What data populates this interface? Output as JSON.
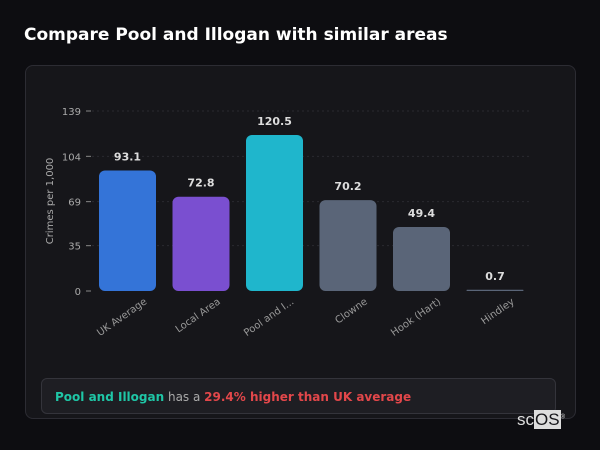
{
  "title": "Compare Pool and Illogan with similar areas",
  "chart_data": {
    "type": "bar",
    "categories": [
      "UK Average",
      "Local Area",
      "Pool and I...",
      "Clowne",
      "Hook (Hart)",
      "Hindley"
    ],
    "values": [
      93.1,
      72.8,
      120.5,
      70.2,
      49.4,
      0.7
    ],
    "data_labels": [
      "93.1",
      "72.8",
      "120.5",
      "70.2",
      "49.4",
      "0.7"
    ],
    "colors": [
      "#3474d8",
      "#7a4fd0",
      "#1fb6cc",
      "#5a6578",
      "#5a6578",
      "#5a6578"
    ],
    "ylabel": "Crimes per 1,000",
    "yticks": [
      0,
      35,
      69,
      104,
      139
    ],
    "ylim": [
      0,
      139
    ],
    "grid": true
  },
  "note": {
    "area": "Pool and Illogan",
    "middle": " has a ",
    "comparison": "29.4% higher than UK average"
  },
  "logo": {
    "text_a": "sc",
    "text_b": "OS",
    "mark": "®"
  }
}
